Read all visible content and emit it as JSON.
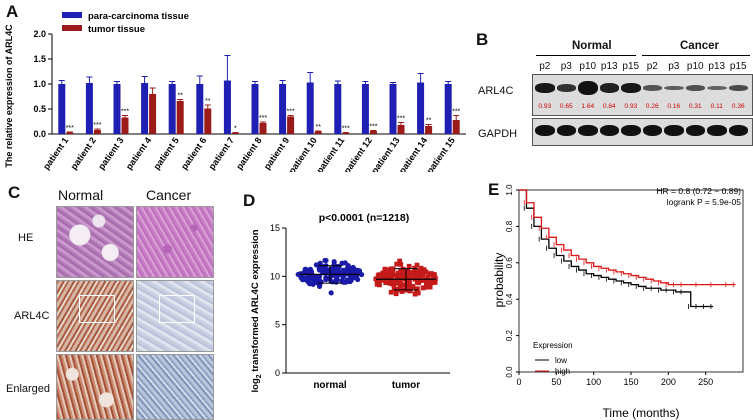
{
  "panels": {
    "a": "A",
    "b": "B",
    "c": "C",
    "d": "D",
    "e": "E"
  },
  "chart_data": [
    {
      "panel": "A",
      "type": "bar",
      "ylabel": "The relative expression of ARL4C",
      "ylim": [
        0,
        2.0
      ],
      "yticks": [
        "0.0",
        "0.5",
        "1.0",
        "1.5",
        "2.0"
      ],
      "categories": [
        "patient 1",
        "patient 2",
        "patient 3",
        "patient 4",
        "patient 5",
        "patient 6",
        "patient 7",
        "patient 8",
        "patient 9",
        "patient 10",
        "patient 11",
        "patient 12",
        "patient 13",
        "patient 14",
        "patient 15"
      ],
      "series": [
        {
          "name": "para-carcinoma tissue",
          "color": "#1f1fb4",
          "values": [
            1.0,
            1.02,
            1.0,
            1.02,
            1.0,
            1.0,
            1.07,
            1.0,
            1.0,
            1.03,
            1.0,
            1.0,
            1.0,
            1.03,
            1.0
          ],
          "errors": [
            0.07,
            0.12,
            0.05,
            0.13,
            0.05,
            0.16,
            0.5,
            0.05,
            0.07,
            0.2,
            0.06,
            0.05,
            0.03,
            0.18,
            0.05
          ]
        },
        {
          "name": "tumor tissue",
          "color": "#9b1b1b",
          "values": [
            0.03,
            0.08,
            0.33,
            0.8,
            0.66,
            0.51,
            0.02,
            0.22,
            0.35,
            0.05,
            0.02,
            0.06,
            0.18,
            0.16,
            0.28
          ],
          "errors": [
            0.01,
            0.02,
            0.04,
            0.12,
            0.03,
            0.07,
            0.01,
            0.02,
            0.02,
            0.01,
            0.01,
            0.01,
            0.05,
            0.03,
            0.09
          ]
        }
      ],
      "significance": [
        "***",
        "***",
        "***",
        "",
        "**",
        "**",
        "*",
        "***",
        "***",
        "**",
        "***",
        "***",
        "***",
        "**",
        "***"
      ]
    },
    {
      "panel": "B",
      "type": "table",
      "group_labels": [
        "Normal",
        "Cancer"
      ],
      "lanes": [
        "p2",
        "p3",
        "p10",
        "p13",
        "p15",
        "p2",
        "p3",
        "p10",
        "p13",
        "p15"
      ],
      "row_labels": [
        "ARL4C",
        "GAPDH"
      ],
      "quantification": [
        "0.93",
        "0.65",
        "1.64",
        "0.84",
        "0.93",
        "0.26",
        "0.16",
        "0.31",
        "0.11",
        "0.36"
      ]
    },
    {
      "panel": "D",
      "type": "scatter",
      "title": "p<0.0001 (n=1218)",
      "ylabel": "log2 transformed ARL4C expression",
      "ylim": [
        0,
        15
      ],
      "yticks": [
        "0",
        "5",
        "10",
        "15"
      ],
      "categories": [
        "normal",
        "tumor"
      ],
      "series": [
        {
          "name": "normal",
          "color": "#1a1aa8",
          "mean": 10.2,
          "sd": 0.9,
          "min": 6.0,
          "max": 12.1
        },
        {
          "name": "tumor",
          "color": "#c41a1a",
          "mean": 9.7,
          "sd": 1.1,
          "min": 5.3,
          "max": 13.5
        }
      ]
    },
    {
      "panel": "E",
      "type": "line",
      "xlabel": "Time (months)",
      "ylabel": "probability",
      "xlim": [
        0,
        300
      ],
      "ylim": [
        0,
        1.0
      ],
      "xticks": [
        "0",
        "50",
        "100",
        "150",
        "200",
        "250"
      ],
      "yticks": [
        "0.0",
        "0.2",
        "0.4",
        "0.6",
        "0.8",
        "1.0"
      ],
      "annotation_hr": "HR = 0.8 (0.72 − 0.89)",
      "annotation_logrank": "logrank P = 5.9e-05",
      "legend_title": "Expression",
      "legend_position": "bottom-left",
      "series": [
        {
          "name": "low",
          "color": "#000000",
          "x": [
            0,
            10,
            20,
            30,
            40,
            50,
            60,
            70,
            80,
            90,
            100,
            110,
            120,
            130,
            140,
            150,
            160,
            170,
            180,
            190,
            200,
            210,
            220,
            230,
            240,
            250,
            260
          ],
          "y": [
            1.0,
            0.9,
            0.8,
            0.73,
            0.68,
            0.64,
            0.61,
            0.58,
            0.56,
            0.54,
            0.53,
            0.52,
            0.51,
            0.5,
            0.49,
            0.48,
            0.47,
            0.46,
            0.46,
            0.45,
            0.45,
            0.44,
            0.44,
            0.36,
            0.36,
            0.36,
            0.36
          ]
        },
        {
          "name": "high",
          "color": "#e01515",
          "x": [
            0,
            10,
            20,
            30,
            40,
            50,
            60,
            70,
            80,
            90,
            100,
            110,
            120,
            130,
            140,
            150,
            160,
            170,
            180,
            190,
            200,
            210,
            220,
            240,
            260,
            280,
            290
          ],
          "y": [
            1.0,
            0.93,
            0.85,
            0.79,
            0.74,
            0.7,
            0.67,
            0.64,
            0.62,
            0.6,
            0.58,
            0.57,
            0.56,
            0.55,
            0.54,
            0.53,
            0.52,
            0.51,
            0.5,
            0.49,
            0.48,
            0.48,
            0.48,
            0.48,
            0.48,
            0.48,
            0.48
          ]
        }
      ]
    }
  ],
  "panel_c": {
    "col_headers": [
      "Normal",
      "Cancer"
    ],
    "row_labels": [
      "HE",
      "ARL4C",
      "Enlarged"
    ]
  }
}
